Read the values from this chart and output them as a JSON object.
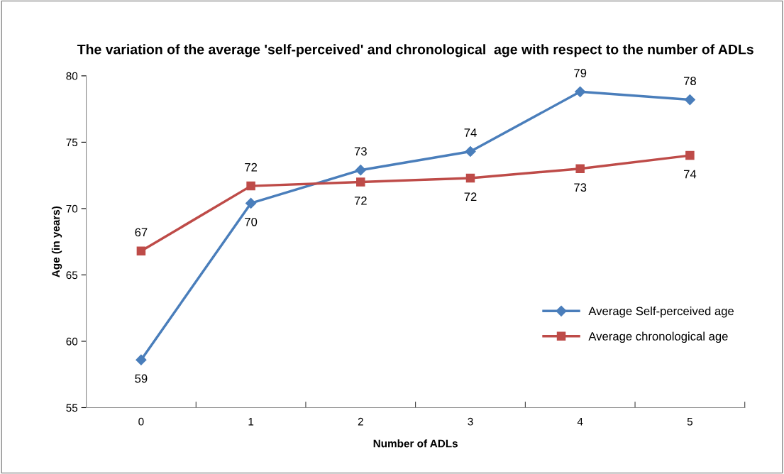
{
  "chart_data": {
    "type": "line",
    "title": "The variation of the average 'self-perceived' and chronological  age with respect to the number of ADLs",
    "xlabel": "Number of ADLs",
    "ylabel": "Age (in years)",
    "categories": [
      "0",
      "1",
      "2",
      "3",
      "4",
      "5"
    ],
    "series": [
      {
        "name": "Average Self-perceived age",
        "color": "#4a7ebb",
        "marker": "diamond",
        "values": [
          58.6,
          70.4,
          72.9,
          74.3,
          78.8,
          78.2
        ],
        "value_labels": [
          "59",
          "70",
          "73",
          "74",
          "79",
          "78"
        ]
      },
      {
        "name": "Average chronological age",
        "color": "#be4b48",
        "marker": "square",
        "values": [
          66.8,
          71.7,
          72.0,
          72.3,
          73.0,
          74.0
        ],
        "value_labels": [
          "67",
          "72",
          "72",
          "72",
          "73",
          "74"
        ]
      }
    ],
    "ylim": [
      55,
      80
    ],
    "yticks": [
      55,
      60,
      65,
      70,
      75,
      80
    ],
    "grid": false,
    "legend": "right",
    "line_style": "solid"
  }
}
